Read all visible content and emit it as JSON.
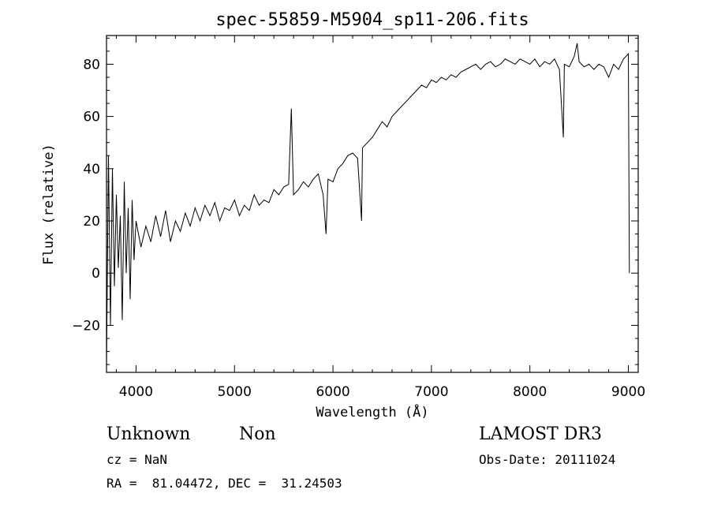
{
  "chart_data": {
    "type": "line",
    "title": "spec-55859-M5904_sp11-206.fits",
    "xlabel": "Wavelength (Å)",
    "ylabel": "Flux (relative)",
    "xlim": [
      3700,
      9100
    ],
    "ylim": [
      -38,
      91
    ],
    "x_ticks": [
      4000,
      5000,
      6000,
      7000,
      8000,
      9000
    ],
    "y_ticks": [
      -20,
      0,
      20,
      40,
      60,
      80
    ],
    "grid": false,
    "series": [
      {
        "x": [
          3700,
          3720,
          3740,
          3760,
          3780,
          3800,
          3820,
          3840,
          3860,
          3880,
          3900,
          3920,
          3940,
          3960,
          3980,
          4000,
          4050,
          4100,
          4150,
          4200,
          4250,
          4300,
          4350,
          4400,
          4450,
          4500,
          4550,
          4600,
          4650,
          4700,
          4750,
          4800,
          4850,
          4900,
          4950,
          5000,
          5050,
          5100,
          5150,
          5200,
          5250,
          5300,
          5350,
          5400,
          5450,
          5500,
          5550,
          5577,
          5600,
          5650,
          5700,
          5750,
          5800,
          5850,
          5900,
          5930,
          5950,
          6000,
          6050,
          6100,
          6150,
          6200,
          6250,
          6290,
          6300,
          6350,
          6400,
          6450,
          6500,
          6550,
          6600,
          6650,
          6700,
          6750,
          6800,
          6850,
          6900,
          6950,
          7000,
          7050,
          7100,
          7150,
          7200,
          7250,
          7300,
          7350,
          7400,
          7450,
          7500,
          7550,
          7600,
          7650,
          7700,
          7750,
          7800,
          7850,
          7900,
          7950,
          8000,
          8050,
          8100,
          8150,
          8200,
          8250,
          8300,
          8340,
          8350,
          8400,
          8450,
          8480,
          8500,
          8550,
          8600,
          8650,
          8700,
          8750,
          8800,
          8850,
          8900,
          8950,
          9000,
          9010
        ],
        "y": [
          -35,
          45,
          -20,
          40,
          -5,
          30,
          2,
          22,
          -18,
          35,
          0,
          25,
          -10,
          28,
          5,
          20,
          10,
          18,
          12,
          22,
          14,
          24,
          12,
          20,
          16,
          23,
          18,
          25,
          20,
          26,
          22,
          27,
          20,
          25,
          24,
          28,
          22,
          26,
          24,
          30,
          26,
          28,
          27,
          32,
          30,
          33,
          34,
          63,
          30,
          32,
          35,
          33,
          36,
          38,
          30,
          15,
          36,
          35,
          40,
          42,
          45,
          46,
          44,
          20,
          48,
          50,
          52,
          55,
          58,
          56,
          60,
          62,
          64,
          66,
          68,
          70,
          72,
          71,
          74,
          73,
          75,
          74,
          76,
          75,
          77,
          78,
          79,
          80,
          78,
          80,
          81,
          79,
          80,
          82,
          81,
          80,
          82,
          81,
          80,
          82,
          79,
          81,
          80,
          82,
          78,
          52,
          80,
          79,
          83,
          88,
          81,
          79,
          80,
          78,
          80,
          79,
          75,
          80,
          78,
          82,
          84,
          0
        ]
      }
    ]
  },
  "footer": {
    "object_name": "Unknown",
    "object_class": "Non",
    "survey": "LAMOST DR3",
    "cz": "cz = NaN",
    "obs_date": "Obs-Date: 20111024",
    "coords": "RA =  81.04472, DEC =  31.24503"
  }
}
